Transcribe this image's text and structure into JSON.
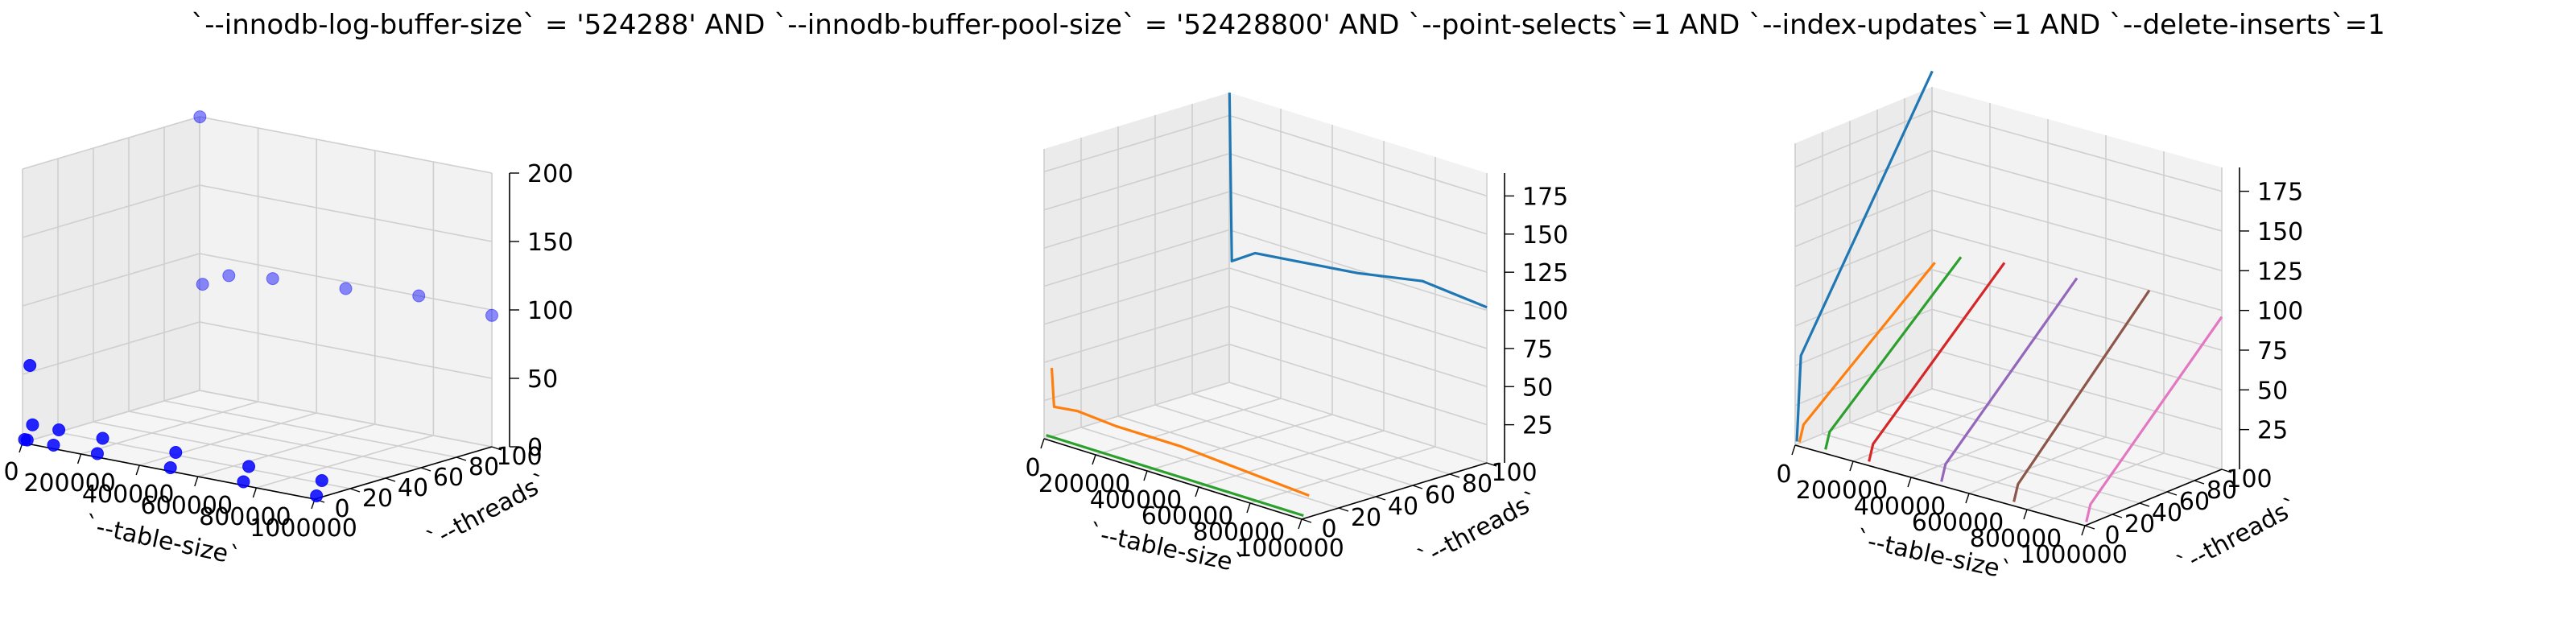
{
  "figure": {
    "title": "`--innodb-log-buffer-size` = '524288' AND `--innodb-buffer-pool-size` = '52428800'  AND `--point-selects`=1 AND `--index-updates`=1 AND `--delete-inserts`=1"
  },
  "chart_data": [
    {
      "type": "scatter",
      "projection": "3d",
      "xlabel": "`--table-size`",
      "ylabel": "`--threads`",
      "zlabel": "",
      "xlim": [
        0,
        1000000
      ],
      "ylim": [
        0,
        100
      ],
      "zlim": [
        0,
        200
      ],
      "xticks": [
        0,
        200000,
        400000,
        600000,
        800000,
        1000000
      ],
      "yticks": [
        0,
        20,
        40,
        60,
        80,
        100
      ],
      "zticks": [
        0,
        50,
        100,
        150,
        200
      ],
      "grid": true,
      "marker_color": "#0000ff",
      "points": [
        {
          "x": 1000,
          "y": 1,
          "z": 2
        },
        {
          "x": 10000,
          "y": 1,
          "z": 2
        },
        {
          "x": 100000,
          "y": 1,
          "z": 2
        },
        {
          "x": 250000,
          "y": 1,
          "z": 2
        },
        {
          "x": 500000,
          "y": 1,
          "z": 2
        },
        {
          "x": 750000,
          "y": 1,
          "z": 2
        },
        {
          "x": 1000000,
          "y": 1,
          "z": 2
        },
        {
          "x": 1000,
          "y": 4,
          "z": 55
        },
        {
          "x": 10000,
          "y": 4,
          "z": 12
        },
        {
          "x": 100000,
          "y": 4,
          "z": 12
        },
        {
          "x": 250000,
          "y": 4,
          "z": 12
        },
        {
          "x": 500000,
          "y": 4,
          "z": 12
        },
        {
          "x": 750000,
          "y": 4,
          "z": 12
        },
        {
          "x": 1000000,
          "y": 4,
          "z": 12
        },
        {
          "x": 1000,
          "y": 100,
          "z": 200
        },
        {
          "x": 10000,
          "y": 100,
          "z": 78
        },
        {
          "x": 100000,
          "y": 100,
          "z": 88
        },
        {
          "x": 250000,
          "y": 100,
          "z": 92
        },
        {
          "x": 500000,
          "y": 100,
          "z": 95
        },
        {
          "x": 750000,
          "y": 100,
          "z": 100
        },
        {
          "x": 1000000,
          "y": 100,
          "z": 96
        }
      ]
    },
    {
      "type": "line",
      "projection": "3d",
      "xlabel": "`--table-size`",
      "ylabel": "`--threads`",
      "zlabel": "",
      "xlim": [
        0,
        1000000
      ],
      "ylim": [
        0,
        100
      ],
      "zlim": [
        0,
        190
      ],
      "xticks": [
        0,
        200000,
        400000,
        600000,
        800000,
        1000000
      ],
      "yticks": [
        0,
        20,
        40,
        60,
        80,
        100
      ],
      "zticks": [
        25,
        50,
        75,
        100,
        125,
        150,
        175
      ],
      "grid": true,
      "series": [
        {
          "color": "#1f77b4",
          "y": 100,
          "x": [
            1000,
            10000,
            100000,
            250000,
            500000,
            750000,
            1000000
          ],
          "z": [
            190,
            80,
            90,
            93,
            98,
            106,
            102
          ]
        },
        {
          "color": "#ff7f0e",
          "y": 4,
          "x": [
            1000,
            10000,
            100000,
            250000,
            500000,
            750000,
            1000000
          ],
          "z": [
            45,
            20,
            22,
            20,
            20,
            17,
            14
          ]
        },
        {
          "color": "#2ca02c",
          "y": 1,
          "x": [
            1000,
            10000,
            100000,
            250000,
            500000,
            750000,
            1000000
          ],
          "z": [
            2,
            2,
            2,
            2,
            2,
            2,
            2
          ]
        }
      ]
    },
    {
      "type": "line",
      "projection": "3d",
      "xlabel": "`--table-size`",
      "ylabel": "`--threads`",
      "zlabel": "",
      "xlim": [
        0,
        1000000
      ],
      "ylim": [
        0,
        100
      ],
      "zlim": [
        0,
        190
      ],
      "xticks": [
        0,
        200000,
        400000,
        600000,
        800000,
        1000000
      ],
      "yticks": [
        0,
        20,
        40,
        60,
        80,
        100
      ],
      "zticks": [
        25,
        50,
        75,
        100,
        125,
        150,
        175
      ],
      "grid": true,
      "series": [
        {
          "color": "#1f77b4",
          "x": 1000,
          "y": [
            1,
            4,
            100
          ],
          "z": [
            2,
            55,
            200
          ]
        },
        {
          "color": "#ff7f0e",
          "x": 10000,
          "y": [
            1,
            4,
            100
          ],
          "z": [
            2,
            12,
            80
          ]
        },
        {
          "color": "#2ca02c",
          "x": 100000,
          "y": [
            1,
            4,
            100
          ],
          "z": [
            2,
            12,
            88
          ]
        },
        {
          "color": "#d62728",
          "x": 250000,
          "y": [
            1,
            4,
            100
          ],
          "z": [
            2,
            12,
            92
          ]
        },
        {
          "color": "#9467bd",
          "x": 500000,
          "y": [
            1,
            4,
            100
          ],
          "z": [
            2,
            12,
            95
          ]
        },
        {
          "color": "#8c564b",
          "x": 750000,
          "y": [
            1,
            4,
            100
          ],
          "z": [
            2,
            12,
            100
          ]
        },
        {
          "color": "#e377c2",
          "x": 1000000,
          "y": [
            1,
            4,
            100
          ],
          "z": [
            2,
            12,
            96
          ]
        }
      ]
    }
  ]
}
